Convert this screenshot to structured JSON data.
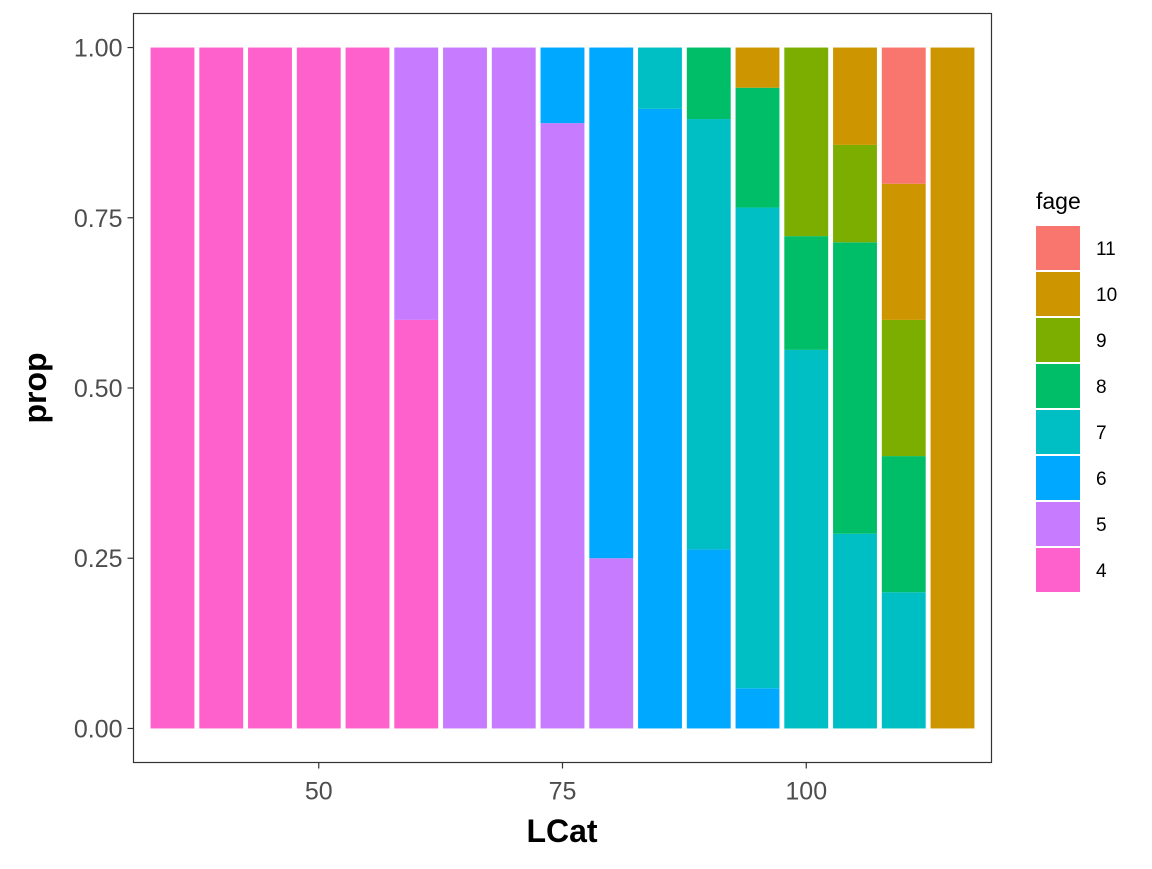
{
  "chart_data": {
    "type": "bar",
    "stacked": true,
    "xlabel": "LCat",
    "ylabel": "prop",
    "xlim": [
      31,
      119
    ],
    "ylim": [
      -0.05,
      1.05
    ],
    "bar_width": 4.5,
    "x_ticks": [
      50,
      75,
      100
    ],
    "y_ticks": [
      0.0,
      0.25,
      0.5,
      0.75,
      1.0
    ],
    "y_tick_labels": [
      "0.00",
      "0.25",
      "0.50",
      "0.75",
      "1.00"
    ],
    "grid": false,
    "legend": {
      "title": "fage",
      "position": "right",
      "items": [
        {
          "label": "11",
          "color": "#F8766D"
        },
        {
          "label": "10",
          "color": "#CD9600"
        },
        {
          "label": "9",
          "color": "#7CAE00"
        },
        {
          "label": "8",
          "color": "#00BE67"
        },
        {
          "label": "7",
          "color": "#00BFC4"
        },
        {
          "label": "6",
          "color": "#00A9FF"
        },
        {
          "label": "5",
          "color": "#C77CFF"
        },
        {
          "label": "4",
          "color": "#FF61CC"
        }
      ]
    },
    "bars": [
      {
        "x": 35,
        "segments": [
          {
            "fage": "4",
            "value": 1.0
          }
        ]
      },
      {
        "x": 40,
        "segments": [
          {
            "fage": "4",
            "value": 1.0
          }
        ]
      },
      {
        "x": 45,
        "segments": [
          {
            "fage": "4",
            "value": 1.0
          }
        ]
      },
      {
        "x": 50,
        "segments": [
          {
            "fage": "4",
            "value": 1.0
          }
        ]
      },
      {
        "x": 55,
        "segments": [
          {
            "fage": "4",
            "value": 1.0
          }
        ]
      },
      {
        "x": 60,
        "segments": [
          {
            "fage": "4",
            "value": 0.6
          },
          {
            "fage": "5",
            "value": 0.4
          }
        ]
      },
      {
        "x": 65,
        "segments": [
          {
            "fage": "5",
            "value": 1.0
          }
        ]
      },
      {
        "x": 70,
        "segments": [
          {
            "fage": "5",
            "value": 1.0
          }
        ]
      },
      {
        "x": 75,
        "segments": [
          {
            "fage": "5",
            "value": 0.889
          },
          {
            "fage": "6",
            "value": 0.111
          }
        ]
      },
      {
        "x": 80,
        "segments": [
          {
            "fage": "5",
            "value": 0.25
          },
          {
            "fage": "6",
            "value": 0.75
          }
        ]
      },
      {
        "x": 85,
        "segments": [
          {
            "fage": "6",
            "value": 0.91
          },
          {
            "fage": "7",
            "value": 0.09
          }
        ]
      },
      {
        "x": 90,
        "segments": [
          {
            "fage": "6",
            "value": 0.263
          },
          {
            "fage": "7",
            "value": 0.632
          },
          {
            "fage": "8",
            "value": 0.105
          }
        ]
      },
      {
        "x": 95,
        "segments": [
          {
            "fage": "6",
            "value": 0.059
          },
          {
            "fage": "7",
            "value": 0.706
          },
          {
            "fage": "8",
            "value": 0.176
          },
          {
            "fage": "10",
            "value": 0.059
          }
        ]
      },
      {
        "x": 100,
        "segments": [
          {
            "fage": "7",
            "value": 0.556
          },
          {
            "fage": "8",
            "value": 0.167
          },
          {
            "fage": "9",
            "value": 0.277
          }
        ]
      },
      {
        "x": 105,
        "segments": [
          {
            "fage": "7",
            "value": 0.286
          },
          {
            "fage": "8",
            "value": 0.428
          },
          {
            "fage": "9",
            "value": 0.143
          },
          {
            "fage": "10",
            "value": 0.143
          }
        ]
      },
      {
        "x": 110,
        "segments": [
          {
            "fage": "7",
            "value": 0.2
          },
          {
            "fage": "8",
            "value": 0.2
          },
          {
            "fage": "9",
            "value": 0.2
          },
          {
            "fage": "10",
            "value": 0.2
          },
          {
            "fage": "11",
            "value": 0.2
          }
        ]
      },
      {
        "x": 115,
        "segments": [
          {
            "fage": "10",
            "value": 1.0
          }
        ]
      }
    ]
  }
}
